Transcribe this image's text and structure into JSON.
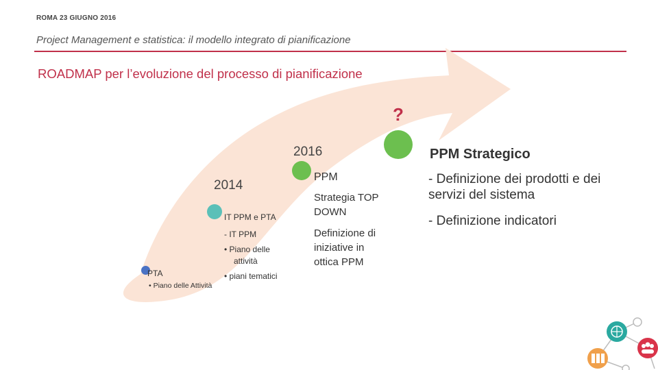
{
  "header": {
    "date": "ROMA 23 GIUGNO 2016",
    "subtitle": "Project Management e statistica: il modello integrato di pianificazione"
  },
  "slide": {
    "title": "ROADMAP per l’evoluzione del processo di pianificazione"
  },
  "colors": {
    "accent": "#c0304a",
    "arrow": "#fbe4d6",
    "dot_pta": "#4a72c4",
    "dot_2014": "#5bc0b8",
    "dot_2016": "#6cbf4f",
    "dot_future": "#6cbf4f",
    "question": "#c0304a"
  },
  "milestones": {
    "pta": {
      "label": "PTA",
      "bullet": "• Piano delle Attività"
    },
    "y2014": {
      "year": "2014",
      "heading": "IT PPM e  PTA",
      "line1": "- IT PPM",
      "line2": "• Piano delle",
      "line3": "attività",
      "line4": "•  piani  tematici"
    },
    "y2016": {
      "year": "2016",
      "heading": "PPM",
      "line1": "Strategia TOP",
      "line2": "DOWN",
      "line3": "Definizione di",
      "line4": "iniziative in",
      "line5": "ottica PPM"
    },
    "future": {
      "marker": "?",
      "heading": "PPM Strategico",
      "item1": "- Definizione dei prodotti e dei servizi del sistema",
      "item2": "- Definizione indicatori"
    }
  },
  "icons": [
    "globe-icon",
    "people-icon",
    "binders-icon"
  ]
}
